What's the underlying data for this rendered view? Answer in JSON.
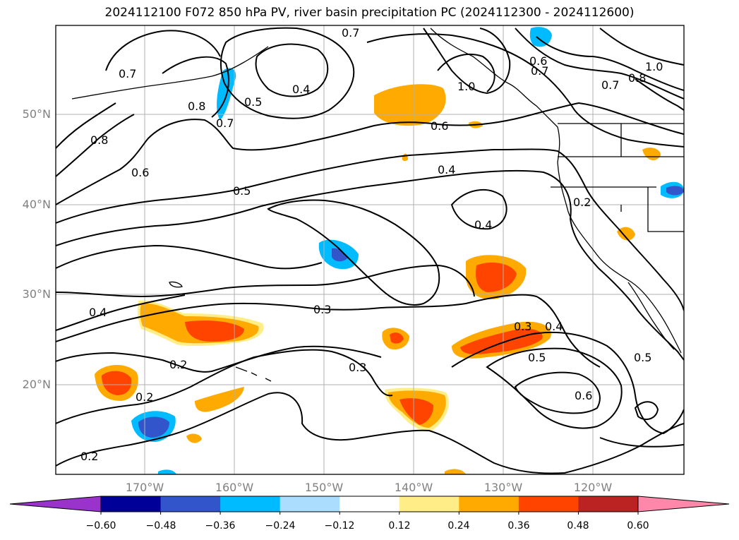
{
  "title": "2024112100 F072 850 hPa PV, river basin precipitation PC (2024112300 - 2024112600)",
  "lat_labels": [
    "50°N",
    "40°N",
    "30°N",
    "20°N"
  ],
  "lon_labels": [
    "170°W",
    "160°W",
    "150°W",
    "140°W",
    "130°W",
    "120°W"
  ],
  "colorbar": {
    "colors": [
      "#9933cc",
      "#000099",
      "#3355cc",
      "#00bbff",
      "#aaddff",
      "#ffffff",
      "#ffee88",
      "#ffaa00",
      "#ff4400",
      "#bb2222",
      "#ff88aa"
    ],
    "under_color": "#9933cc",
    "over_color": "#ff88aa",
    "tick_labels": [
      "−0.60",
      "−0.48",
      "−0.36",
      "−0.24",
      "−0.12",
      "0.12",
      "0.24",
      "0.36",
      "0.48",
      "0.60"
    ]
  },
  "contour_labels": [
    "0.7",
    "0.7",
    "0.4",
    "0.5",
    "0.8",
    "0.7",
    "0.8",
    "0.6",
    "0.5",
    "1.0",
    "0.6",
    "0.6",
    "0.7",
    "0.7",
    "0.8",
    "1.0",
    "0.4",
    "0.2",
    "0.4",
    "0.3",
    "0.4",
    "0.2",
    "0.3",
    "0.3",
    "0.4",
    "0.5",
    "0.6",
    "0.5",
    "0.2",
    "0.2"
  ]
}
